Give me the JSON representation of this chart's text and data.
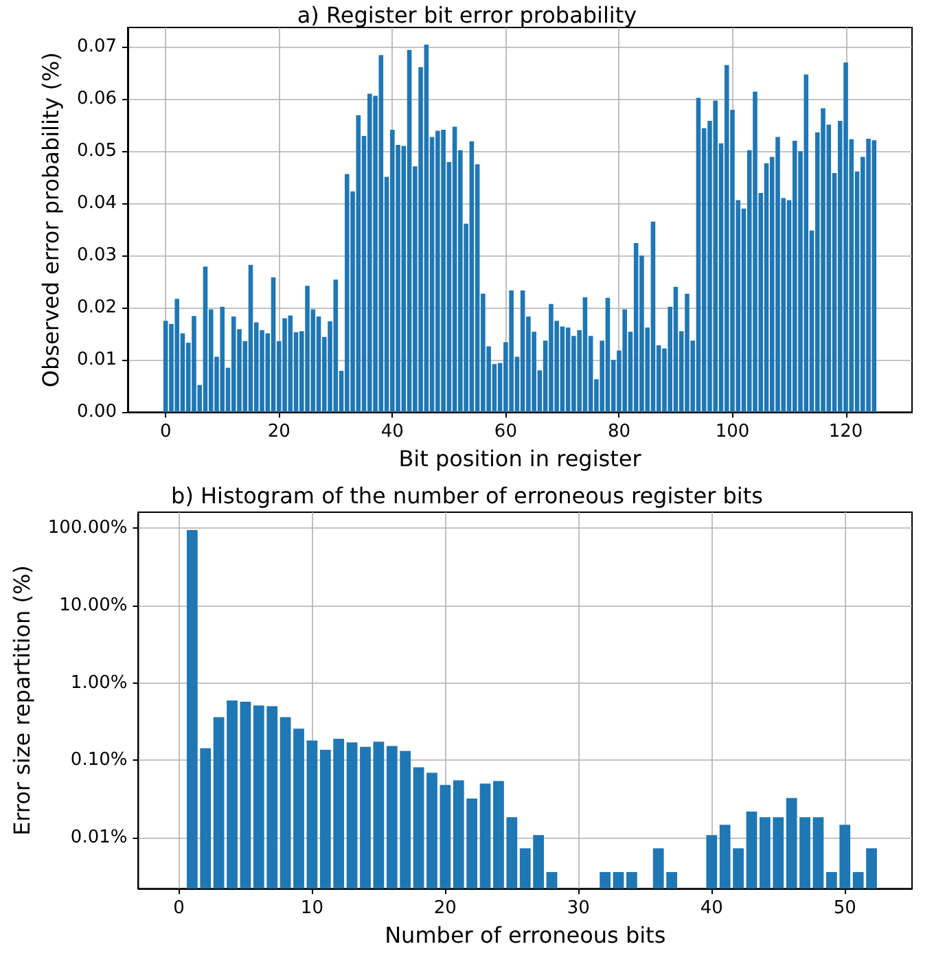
{
  "chart_data": [
    {
      "type": "bar",
      "title": "a) Register bit error probability",
      "xlabel": "Bit position in register",
      "ylabel": "Observed error probability (%)",
      "color": "#1f77b4",
      "x": [
        0,
        1,
        2,
        3,
        4,
        5,
        6,
        7,
        8,
        9,
        10,
        11,
        12,
        13,
        14,
        15,
        16,
        17,
        18,
        19,
        20,
        21,
        22,
        23,
        24,
        25,
        26,
        27,
        28,
        29,
        30,
        31,
        32,
        33,
        34,
        35,
        36,
        37,
        38,
        39,
        40,
        41,
        42,
        43,
        44,
        45,
        46,
        47,
        48,
        49,
        50,
        51,
        52,
        53,
        54,
        55,
        56,
        57,
        58,
        59,
        60,
        61,
        62,
        63,
        64,
        65,
        66,
        67,
        68,
        69,
        70,
        71,
        72,
        73,
        74,
        75,
        76,
        77,
        78,
        79,
        80,
        81,
        82,
        83,
        84,
        85,
        86,
        87,
        88,
        89,
        90,
        91,
        92,
        93,
        94,
        95,
        96,
        97,
        98,
        99,
        100,
        101,
        102,
        103,
        104,
        105,
        106,
        107,
        108,
        109,
        110,
        111,
        112,
        113,
        114,
        115,
        116,
        117,
        118,
        119,
        120,
        121,
        122,
        123,
        124,
        125
      ],
      "values": [
        0.0175,
        0.0169,
        0.0217,
        0.0151,
        0.0133,
        0.0184,
        0.0052,
        0.0279,
        0.0197,
        0.0106,
        0.0202,
        0.0085,
        0.0183,
        0.0159,
        0.0136,
        0.0282,
        0.0172,
        0.0157,
        0.0151,
        0.0258,
        0.0136,
        0.018,
        0.0185,
        0.0153,
        0.0155,
        0.0242,
        0.0197,
        0.0183,
        0.0144,
        0.0174,
        0.0254,
        0.0079,
        0.0456,
        0.0423,
        0.0569,
        0.0529,
        0.061,
        0.0606,
        0.0684,
        0.0451,
        0.0541,
        0.0512,
        0.051,
        0.0694,
        0.0471,
        0.0661,
        0.0704,
        0.0527,
        0.0539,
        0.0541,
        0.0479,
        0.0547,
        0.0502,
        0.0361,
        0.0519,
        0.0475,
        0.0227,
        0.0126,
        0.0092,
        0.0094,
        0.0134,
        0.0233,
        0.0106,
        0.0233,
        0.0183,
        0.0154,
        0.008,
        0.0137,
        0.0207,
        0.0175,
        0.0164,
        0.0162,
        0.0146,
        0.0157,
        0.022,
        0.0146,
        0.0063,
        0.0137,
        0.0219,
        0.01,
        0.0118,
        0.0197,
        0.0154,
        0.0324,
        0.03,
        0.0162,
        0.0365,
        0.0128,
        0.0122,
        0.0202,
        0.024,
        0.0155,
        0.0227,
        0.0137,
        0.0602,
        0.0544,
        0.0558,
        0.0597,
        0.0515,
        0.0665,
        0.0579,
        0.0406,
        0.039,
        0.0502,
        0.0614,
        0.042,
        0.0477,
        0.0489,
        0.0527,
        0.041,
        0.0406,
        0.052,
        0.05,
        0.0647,
        0.0348,
        0.0536,
        0.0582,
        0.0551,
        0.0458,
        0.0558,
        0.067,
        0.0523,
        0.0461,
        0.0489,
        0.0524,
        0.0521
      ],
      "xlim": [
        -6.69,
        131.69
      ],
      "xticks": [
        0,
        20,
        40,
        60,
        80,
        100,
        120
      ],
      "ylim": [
        0,
        0.0737
      ],
      "yticks": [
        {
          "value": 0,
          "label": "0.00"
        },
        {
          "value": 0.01,
          "label": "0.01"
        },
        {
          "value": 0.02,
          "label": "0.02"
        },
        {
          "value": 0.03,
          "label": "0.03"
        },
        {
          "value": 0.04,
          "label": "0.04"
        },
        {
          "value": 0.05,
          "label": "0.05"
        },
        {
          "value": 0.06,
          "label": "0.06"
        },
        {
          "value": 0.07,
          "label": "0.07"
        }
      ],
      "grid": true
    },
    {
      "type": "bar",
      "title": "b) Histogram of the number of erroneous register bits",
      "xlabel": "Number of erroneous bits",
      "ylabel": "Error size repartition (%)",
      "color": "#1f77b4",
      "x": [
        1,
        2,
        3,
        4,
        5,
        6,
        7,
        8,
        9,
        10,
        11,
        12,
        13,
        14,
        15,
        16,
        17,
        18,
        19,
        20,
        21,
        22,
        23,
        24,
        25,
        26,
        27,
        28,
        29,
        30,
        31,
        32,
        33,
        34,
        35,
        36,
        37,
        38,
        39,
        40,
        41,
        42,
        43,
        44,
        45,
        46,
        47,
        48,
        49,
        50,
        51,
        52
      ],
      "values": [
        94,
        0.143,
        0.36,
        0.59,
        0.57,
        0.51,
        0.5,
        0.36,
        0.256,
        0.18,
        0.137,
        0.189,
        0.17,
        0.149,
        0.174,
        0.153,
        0.132,
        0.081,
        0.069,
        0.048,
        0.055,
        0.032,
        0.05,
        0.054,
        0.0184,
        0.0073,
        0.0108,
        0.0036,
        null,
        null,
        null,
        0.0036,
        0.0036,
        0.0036,
        null,
        0.0073,
        0.0036,
        null,
        null,
        0.0108,
        0.0147,
        0.0073,
        0.0218,
        0.0184,
        0.0184,
        0.0325,
        0.0184,
        0.0184,
        0.0036,
        0.0147,
        0.0036,
        0.0073
      ],
      "xlim": [
        -3.04,
        55.04
      ],
      "xticks": [
        0,
        10,
        20,
        30,
        40,
        50
      ],
      "ylim": [
        0.0022,
        160
      ],
      "yticks": [
        {
          "value": 0.01,
          "label": "0.01%"
        },
        {
          "value": 0.1,
          "label": "0.10%"
        },
        {
          "value": 1,
          "label": "1.00%"
        },
        {
          "value": 10,
          "label": "10.00%"
        },
        {
          "value": 100,
          "label": "100.00%"
        }
      ],
      "log": "y",
      "grid": true
    }
  ]
}
